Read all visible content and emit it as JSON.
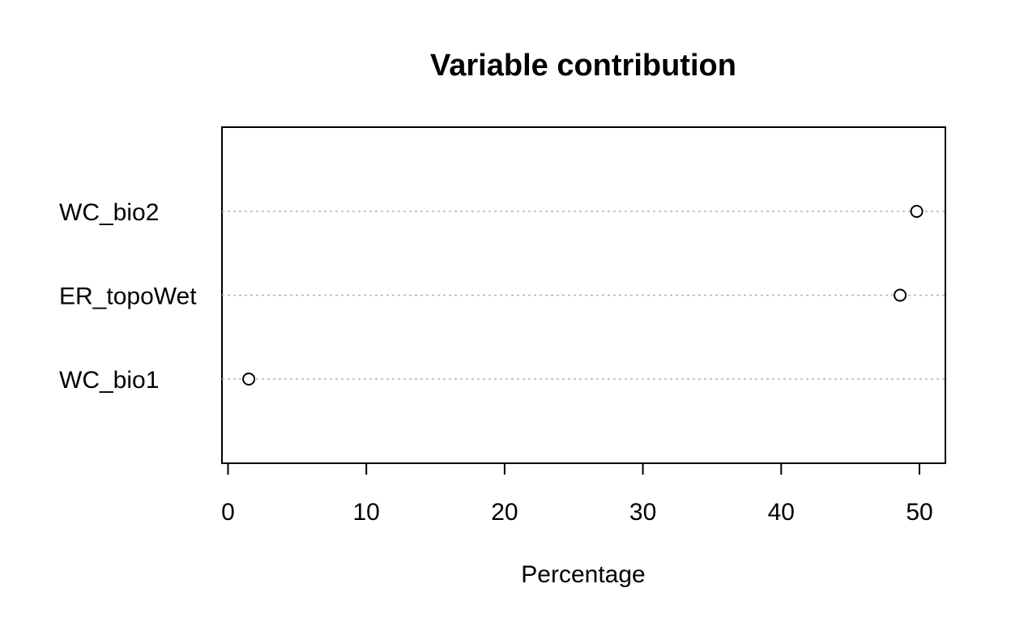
{
  "chart_data": {
    "type": "scatter",
    "subtype": "dotchart",
    "title": "Variable contribution",
    "xlabel": "Percentage",
    "ylabel": "",
    "xlim": [
      0,
      52
    ],
    "x_ticks": [
      0,
      10,
      20,
      30,
      40,
      50
    ],
    "categories": [
      "WC_bio2",
      "ER_topoWet",
      "WC_bio1"
    ],
    "values": [
      49.8,
      48.6,
      1.5
    ],
    "grid": "dotted horizontal guide lines",
    "legend": "none",
    "colors": {
      "marker_stroke": "#000000",
      "marker_fill": "#ffffff",
      "guide_line": "#b3b3b3",
      "axis": "#000000",
      "background": "#ffffff"
    }
  }
}
